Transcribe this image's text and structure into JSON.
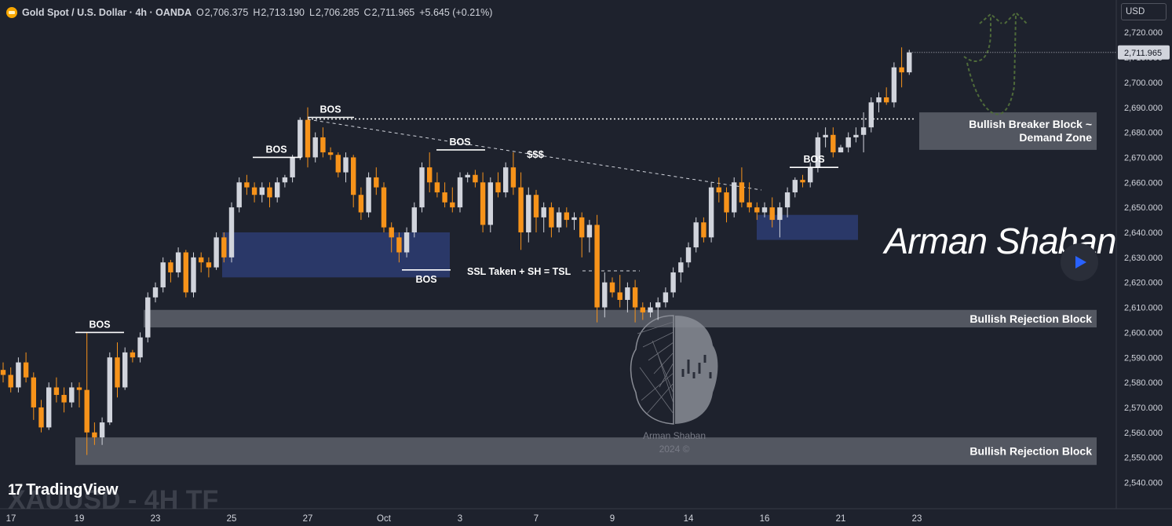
{
  "header": {
    "symbol": "Gold Spot / U.S. Dollar · 4h · OANDA",
    "open_label": "O",
    "open": "2,706.375",
    "high_label": "H",
    "high": "2,713.190",
    "low_label": "L",
    "low": "2,706.285",
    "close_label": "C",
    "close": "2,711.965",
    "change": "+5.645 (+0.21%)"
  },
  "currency_button": "USD",
  "price_label": "2,711.965",
  "watermark": "XAUUSD - 4H TF",
  "brand": "TradingView",
  "signature": "Arman Shaban",
  "logo": {
    "name": "Arman Shaban",
    "year": "2024 ©"
  },
  "colors": {
    "background": "#1e222d",
    "bull": "#d1d4dc",
    "bear": "#f7931a",
    "demand_zone": "#2b3a6b",
    "rejection_block": "#5d606b",
    "projection": "#4f6b3a"
  },
  "icons": [
    "gold-coin-icon",
    "tradingview-logo-icon",
    "play-icon",
    "brain-logo-icon"
  ],
  "chart_data": {
    "type": "candlestick",
    "symbol": "XAUUSD",
    "timeframe": "4h",
    "y_axis": {
      "ticks": [
        2540,
        2550,
        2560,
        2570,
        2580,
        2590,
        2600,
        2610,
        2620,
        2630,
        2640,
        2650,
        2660,
        2670,
        2680,
        2690,
        2700,
        2710,
        2720
      ],
      "tick_labels": [
        "2,540.000",
        "2,550.000",
        "2,560.000",
        "2,570.000",
        "2,580.000",
        "2,590.000",
        "2,600.000",
        "2,610.000",
        "2,620.000",
        "2,630.000",
        "2,640.000",
        "2,650.000",
        "2,660.000",
        "2,670.000",
        "2,680.000",
        "2,690.000",
        "2,700.000",
        "2,710.000",
        "2,720.000"
      ],
      "range": [
        2536,
        2730
      ]
    },
    "x_axis": {
      "labels": [
        "17",
        "19",
        "23",
        "25",
        "27",
        "Oct",
        "3",
        "7",
        "9",
        "14",
        "16",
        "21",
        "23"
      ],
      "label_bar_index": [
        -2,
        10,
        20,
        30,
        40,
        50,
        60,
        70,
        80,
        90,
        100,
        110,
        120
      ]
    },
    "ohlc": [
      [
        2585,
        2588,
        2580,
        2583
      ],
      [
        2583,
        2586,
        2576,
        2578
      ],
      [
        2578,
        2590,
        2576,
        2588
      ],
      [
        2588,
        2592,
        2580,
        2582
      ],
      [
        2582,
        2584,
        2565,
        2570
      ],
      [
        2570,
        2573,
        2560,
        2562
      ],
      [
        2562,
        2580,
        2561,
        2578
      ],
      [
        2578,
        2582,
        2572,
        2575
      ],
      [
        2575,
        2578,
        2568,
        2572
      ],
      [
        2572,
        2580,
        2570,
        2578
      ],
      [
        2578,
        2580,
        2570,
        2577
      ],
      [
        2577,
        2600,
        2551,
        2560
      ],
      [
        2560,
        2564,
        2555,
        2558
      ],
      [
        2558,
        2566,
        2555,
        2564
      ],
      [
        2564,
        2592,
        2563,
        2590
      ],
      [
        2590,
        2596,
        2574,
        2578
      ],
      [
        2578,
        2594,
        2577,
        2592
      ],
      [
        2592,
        2593,
        2588,
        2590
      ],
      [
        2590,
        2600,
        2588,
        2598
      ],
      [
        2598,
        2616,
        2596,
        2614
      ],
      [
        2614,
        2620,
        2612,
        2618
      ],
      [
        2618,
        2630,
        2616,
        2628
      ],
      [
        2628,
        2629,
        2620,
        2624
      ],
      [
        2624,
        2634,
        2622,
        2632
      ],
      [
        2632,
        2633,
        2614,
        2616
      ],
      [
        2616,
        2632,
        2614,
        2630
      ],
      [
        2630,
        2632,
        2624,
        2628
      ],
      [
        2628,
        2630,
        2622,
        2626
      ],
      [
        2626,
        2640,
        2625,
        2638
      ],
      [
        2638,
        2640,
        2628,
        2630
      ],
      [
        2630,
        2652,
        2628,
        2650
      ],
      [
        2650,
        2662,
        2648,
        2660
      ],
      [
        2660,
        2663,
        2655,
        2658
      ],
      [
        2658,
        2660,
        2652,
        2655
      ],
      [
        2655,
        2660,
        2652,
        2658
      ],
      [
        2658,
        2660,
        2650,
        2654
      ],
      [
        2654,
        2662,
        2652,
        2660
      ],
      [
        2660,
        2663,
        2658,
        2662
      ],
      [
        2662,
        2671,
        2660,
        2670
      ],
      [
        2670,
        2686,
        2669,
        2685
      ],
      [
        2685,
        2690,
        2666,
        2670
      ],
      [
        2670,
        2680,
        2668,
        2678
      ],
      [
        2678,
        2682,
        2670,
        2672
      ],
      [
        2672,
        2674,
        2669,
        2671
      ],
      [
        2671,
        2672,
        2662,
        2664
      ],
      [
        2664,
        2672,
        2660,
        2670
      ],
      [
        2670,
        2671,
        2650,
        2655
      ],
      [
        2655,
        2658,
        2645,
        2648
      ],
      [
        2648,
        2664,
        2646,
        2662
      ],
      [
        2662,
        2666,
        2655,
        2658
      ],
      [
        2658,
        2660,
        2640,
        2642
      ],
      [
        2642,
        2644,
        2632,
        2638
      ],
      [
        2638,
        2640,
        2628,
        2632
      ],
      [
        2632,
        2642,
        2630,
        2640
      ],
      [
        2640,
        2652,
        2638,
        2650
      ],
      [
        2650,
        2668,
        2648,
        2666
      ],
      [
        2666,
        2672,
        2656,
        2660
      ],
      [
        2660,
        2664,
        2654,
        2656
      ],
      [
        2656,
        2660,
        2650,
        2652
      ],
      [
        2652,
        2658,
        2648,
        2650
      ],
      [
        2650,
        2664,
        2648,
        2662
      ],
      [
        2662,
        2664,
        2660,
        2663
      ],
      [
        2663,
        2665,
        2658,
        2660
      ],
      [
        2660,
        2664,
        2640,
        2643
      ],
      [
        2643,
        2662,
        2640,
        2660
      ],
      [
        2660,
        2664,
        2654,
        2656
      ],
      [
        2656,
        2668,
        2654,
        2666
      ],
      [
        2666,
        2672,
        2655,
        2658
      ],
      [
        2658,
        2664,
        2633,
        2640
      ],
      [
        2640,
        2658,
        2636,
        2655
      ],
      [
        2655,
        2657,
        2640,
        2646
      ],
      [
        2646,
        2652,
        2640,
        2650
      ],
      [
        2650,
        2652,
        2638,
        2642
      ],
      [
        2642,
        2650,
        2640,
        2648
      ],
      [
        2648,
        2650,
        2642,
        2645
      ],
      [
        2645,
        2648,
        2641,
        2646
      ],
      [
        2646,
        2648,
        2630,
        2638
      ],
      [
        2638,
        2645,
        2632,
        2643
      ],
      [
        2643,
        2647,
        2604,
        2610
      ],
      [
        2610,
        2624,
        2606,
        2620
      ],
      [
        2620,
        2622,
        2614,
        2616
      ],
      [
        2616,
        2623,
        2610,
        2613
      ],
      [
        2613,
        2620,
        2608,
        2618
      ],
      [
        2618,
        2621,
        2604,
        2610
      ],
      [
        2610,
        2612,
        2605,
        2608
      ],
      [
        2608,
        2612,
        2606,
        2610
      ],
      [
        2610,
        2614,
        2605,
        2612
      ],
      [
        2612,
        2618,
        2610,
        2616
      ],
      [
        2616,
        2626,
        2614,
        2624
      ],
      [
        2624,
        2630,
        2620,
        2628
      ],
      [
        2628,
        2636,
        2626,
        2634
      ],
      [
        2634,
        2646,
        2632,
        2644
      ],
      [
        2644,
        2646,
        2636,
        2638
      ],
      [
        2638,
        2660,
        2636,
        2658
      ],
      [
        2658,
        2662,
        2652,
        2656
      ],
      [
        2656,
        2658,
        2644,
        2648
      ],
      [
        2648,
        2662,
        2646,
        2660
      ],
      [
        2660,
        2666,
        2650,
        2652
      ],
      [
        2652,
        2660,
        2648,
        2650
      ],
      [
        2650,
        2652,
        2645,
        2648
      ],
      [
        2648,
        2652,
        2646,
        2650
      ],
      [
        2650,
        2654,
        2642,
        2645
      ],
      [
        2645,
        2652,
        2638,
        2650
      ],
      [
        2650,
        2658,
        2646,
        2656
      ],
      [
        2656,
        2662,
        2654,
        2661
      ],
      [
        2661,
        2663,
        2658,
        2660
      ],
      [
        2660,
        2668,
        2658,
        2666
      ],
      [
        2666,
        2680,
        2664,
        2678
      ],
      [
        2678,
        2682,
        2674,
        2679
      ],
      [
        2679,
        2682,
        2670,
        2672
      ],
      [
        2672,
        2675,
        2672,
        2674
      ],
      [
        2674,
        2680,
        2672,
        2678
      ],
      [
        2678,
        2682,
        2676,
        2679
      ],
      [
        2679,
        2688,
        2672,
        2682
      ],
      [
        2682,
        2694,
        2680,
        2692
      ],
      [
        2692,
        2696,
        2688,
        2694
      ],
      [
        2694,
        2698,
        2691,
        2692
      ],
      [
        2692,
        2708,
        2690,
        2706
      ],
      [
        2706,
        2714,
        2698,
        2704
      ],
      [
        2704,
        2713,
        2703,
        2712
      ]
    ],
    "annotations": [
      {
        "text": "BOS",
        "price": 2600
      },
      {
        "text": "BOS",
        "price": 2670
      },
      {
        "text": "BOS",
        "price": 2686
      },
      {
        "text": "BOS",
        "price": 2673
      },
      {
        "text": "BOS",
        "price": 2625
      },
      {
        "text": "BOS",
        "price": 2666
      },
      {
        "text": "$$$",
        "price": 2671
      },
      {
        "text": "SSL Taken + SH = TSL",
        "price": 2625
      }
    ],
    "zones": [
      {
        "label": "",
        "type": "demand",
        "top": 2640,
        "bottom": 2622
      },
      {
        "label": "",
        "type": "demand",
        "top": 2647,
        "bottom": 2637
      },
      {
        "label": "Bullish Breaker Block ~\nDemand Zone",
        "type": "breaker",
        "top": 2688,
        "bottom": 2673
      },
      {
        "label": "Bullish Rejection Block",
        "type": "rejection",
        "top": 2609,
        "bottom": 2602
      },
      {
        "label": "Bullish Rejection Block",
        "type": "rejection",
        "top": 2558,
        "bottom": 2547
      }
    ],
    "current_price": 2711.965
  }
}
